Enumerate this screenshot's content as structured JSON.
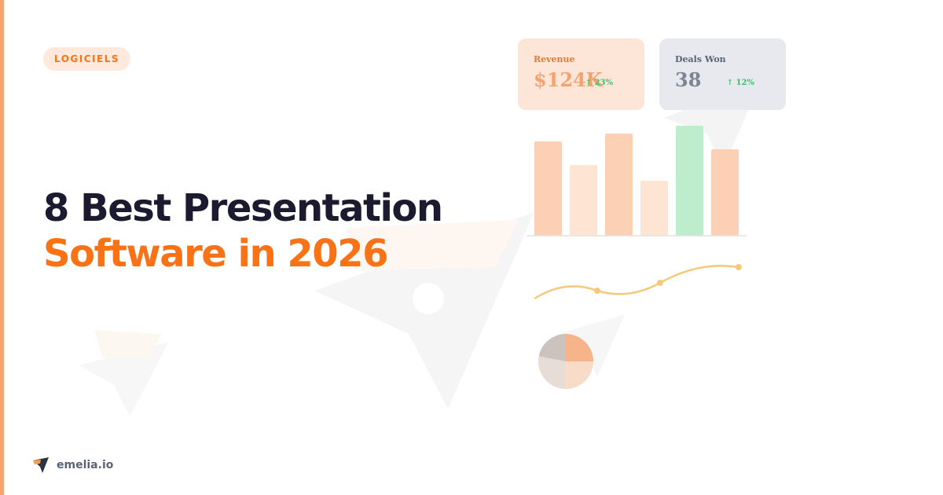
{
  "category": {
    "label": "LOGICIELS"
  },
  "headline": {
    "line1": "8 Best Presentation",
    "line2": "Software in 2026"
  },
  "stats": [
    {
      "label": "Revenue",
      "value": "$124K",
      "delta": "↑ 23%"
    },
    {
      "label": "Deals Won",
      "value": "38",
      "delta": "↑ 12%"
    }
  ],
  "chart_data": [
    {
      "type": "bar",
      "categories": [
        "1",
        "2",
        "3",
        "4",
        "5",
        "6"
      ],
      "values": [
        120,
        90,
        130,
        70,
        140,
        110
      ],
      "highlight_index": 4,
      "ylim": [
        0,
        140
      ],
      "grid": false
    },
    {
      "type": "line",
      "x": [
        0,
        1,
        2,
        3
      ],
      "y": [
        0.4,
        0.72,
        0.22,
        1.0
      ],
      "ylim": [
        0,
        1
      ]
    },
    {
      "type": "pie",
      "values": [
        25,
        25,
        28,
        22
      ]
    }
  ],
  "brand": {
    "name": "emelia.io"
  },
  "colors": {
    "accent": "#f97316",
    "title": "#1b1a2e",
    "bar": "#fbd0b5",
    "bar_light": "#fde4d3",
    "bar_highlight": "#bdedcc",
    "line": "#f6c97a",
    "positive": "#3ebd6b",
    "card_orange": "#fde6d8",
    "card_gray": "#e7e9ee",
    "muted": "#7d8594",
    "watermark": "#f7f7f8"
  },
  "icons": {
    "background": "paper-plane-icon",
    "brand": "emelia-logo-icon"
  }
}
